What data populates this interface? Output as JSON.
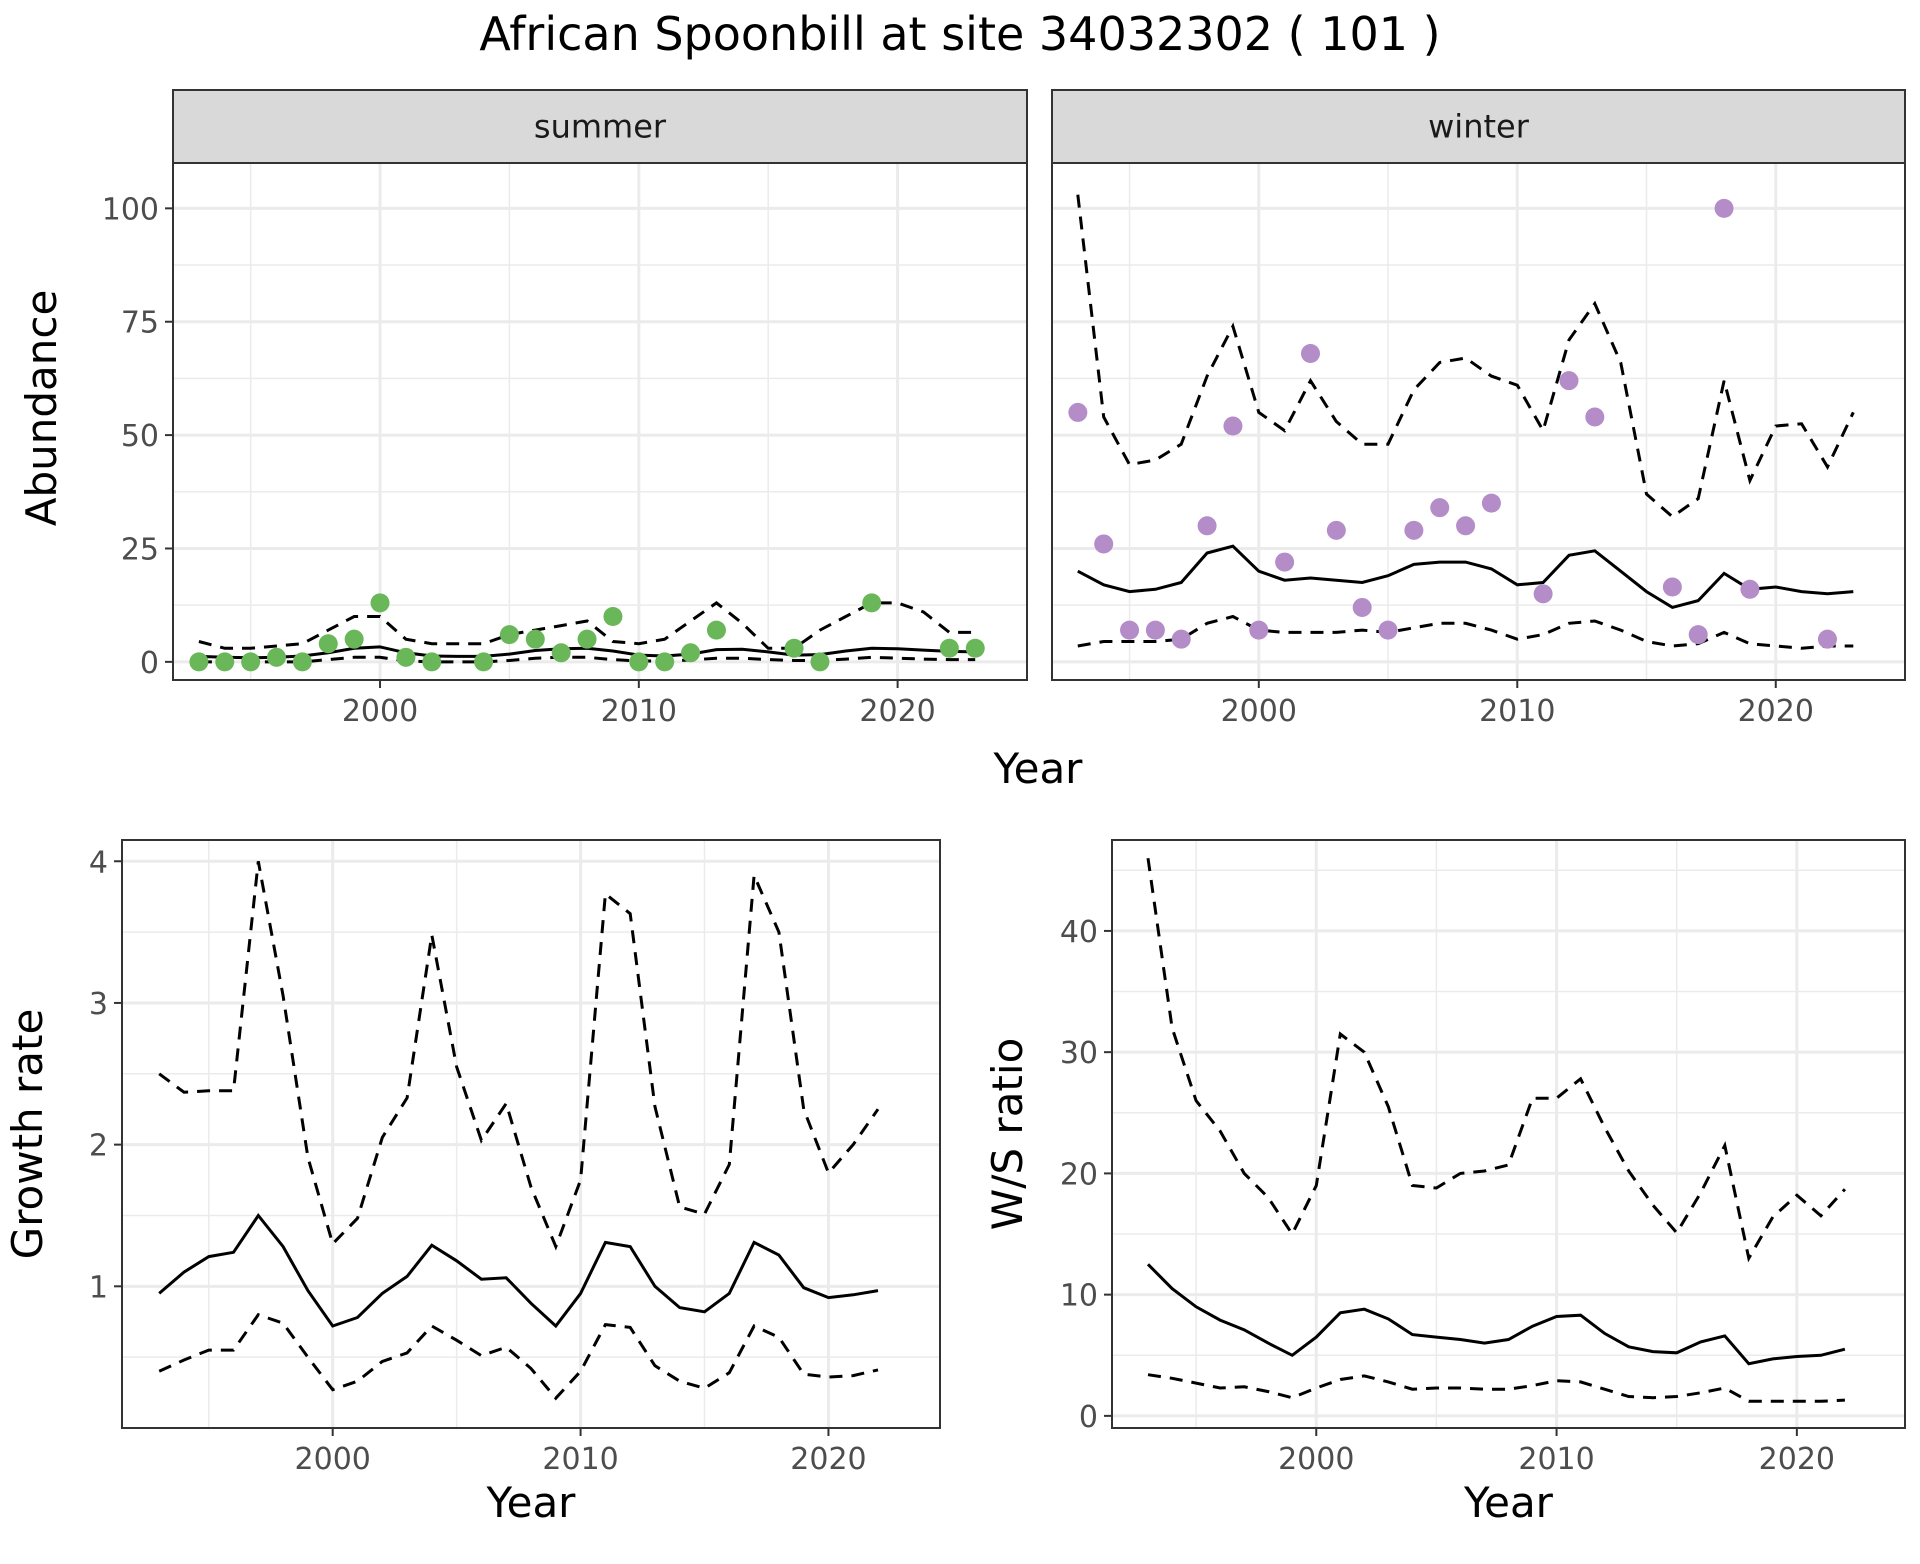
{
  "title": "African Spoonbill at site 34032302 ( 101 )",
  "colors": {
    "summer": "#6ab759",
    "winter": "#b38cc8",
    "line": "#000000",
    "grid": "#ebebeb",
    "strip": "#d9d9d9"
  },
  "chart_data": [
    {
      "type": "scatter",
      "panel": "summer",
      "strip_label": "summer",
      "xlabel": "Year",
      "ylabel": "Abundance",
      "xlim": [
        1992,
        2025
      ],
      "ylim": [
        -4,
        110
      ],
      "x_ticks": [
        2000,
        2010,
        2020
      ],
      "y_ticks": [
        0,
        25,
        50,
        75,
        100
      ],
      "grid": true,
      "points": {
        "x": [
          1993,
          1994,
          1995,
          1996,
          1997,
          1998,
          1999,
          2000,
          2001,
          2002,
          2004,
          2005,
          2006,
          2007,
          2008,
          2009,
          2010,
          2011,
          2012,
          2013,
          2016,
          2017,
          2019,
          2022,
          2023
        ],
        "y": [
          0,
          0,
          0,
          1,
          0,
          4,
          5,
          13,
          1,
          0,
          0,
          6,
          5,
          2,
          5,
          10,
          0,
          0,
          2,
          7,
          3,
          0,
          13,
          3,
          3
        ]
      },
      "lines": {
        "x": [
          1993,
          1994,
          1995,
          1996,
          1997,
          1998,
          1999,
          2000,
          2001,
          2002,
          2003,
          2004,
          2005,
          2006,
          2007,
          2008,
          2009,
          2010,
          2011,
          2012,
          2013,
          2014,
          2015,
          2016,
          2017,
          2018,
          2019,
          2020,
          2021,
          2022,
          2023
        ],
        "mean": [
          1.2,
          1.0,
          0.9,
          1.0,
          1.3,
          2.0,
          3.0,
          3.3,
          2.0,
          1.3,
          1.2,
          1.2,
          1.7,
          2.5,
          2.9,
          3.0,
          2.4,
          1.5,
          1.3,
          1.7,
          2.7,
          2.8,
          2.2,
          1.5,
          1.6,
          2.4,
          3.0,
          2.9,
          2.6,
          2.3,
          2.2
        ],
        "upper": [
          4.5,
          3.0,
          3.0,
          3.5,
          4.0,
          7.0,
          10.0,
          10.0,
          5.0,
          4.0,
          4.0,
          4.0,
          6.0,
          7.0,
          8.0,
          9.0,
          4.5,
          4.0,
          5.0,
          9.0,
          13.0,
          8.5,
          3.0,
          3.0,
          7.0,
          10.0,
          13.0,
          13.0,
          11.0,
          6.5,
          6.5
        ],
        "lower": [
          0.0,
          0.0,
          0.0,
          0.0,
          0.0,
          0.5,
          1.0,
          1.0,
          0.2,
          0.0,
          0.0,
          0.0,
          0.3,
          0.8,
          1.0,
          1.0,
          0.5,
          0.2,
          0.2,
          0.4,
          0.8,
          0.8,
          0.5,
          0.3,
          0.3,
          0.6,
          1.0,
          0.8,
          0.6,
          0.5,
          0.5
        ]
      }
    },
    {
      "type": "scatter",
      "panel": "winter",
      "strip_label": "winter",
      "xlabel": "Year",
      "ylabel": "Abundance",
      "xlim": [
        1992,
        2025
      ],
      "ylim": [
        -4,
        110
      ],
      "x_ticks": [
        2000,
        2010,
        2020
      ],
      "y_ticks": [
        0,
        25,
        50,
        75,
        100
      ],
      "grid": true,
      "points": {
        "x": [
          1993,
          1994,
          1995,
          1996,
          1997,
          1998,
          1999,
          2000,
          2001,
          2002,
          2003,
          2004,
          2005,
          2006,
          2007,
          2008,
          2009,
          2011,
          2012,
          2013,
          2016,
          2017,
          2018,
          2019,
          2022
        ],
        "y": [
          55,
          26,
          7,
          7,
          5,
          30,
          52,
          7,
          22,
          68,
          29,
          12,
          7,
          29,
          34,
          30,
          35,
          15,
          62,
          54,
          16.5,
          6,
          100,
          16,
          5
        ]
      },
      "lines": {
        "x": [
          1993,
          1994,
          1995,
          1996,
          1997,
          1998,
          1999,
          2000,
          2001,
          2002,
          2003,
          2004,
          2005,
          2006,
          2007,
          2008,
          2009,
          2010,
          2011,
          2012,
          2013,
          2014,
          2015,
          2016,
          2017,
          2018,
          2019,
          2020,
          2021,
          2022,
          2023
        ],
        "mean": [
          20,
          17,
          15.5,
          16,
          17.5,
          24,
          25.5,
          20,
          18,
          18.5,
          18,
          17.5,
          19,
          21.5,
          22,
          22,
          20.5,
          17,
          17.5,
          23.5,
          24.5,
          20,
          15.5,
          12,
          13.5,
          19.5,
          16,
          16.5,
          15.5,
          15,
          15.5
        ],
        "upper": [
          103,
          54,
          43.5,
          44.5,
          48,
          63,
          74,
          55,
          51,
          62,
          53,
          48,
          48,
          60,
          66,
          67,
          63,
          61,
          51,
          71,
          79,
          66,
          37,
          32,
          36,
          62,
          40,
          52,
          52.5,
          43,
          55
        ],
        "lower": [
          3.5,
          4.5,
          4.5,
          4.5,
          5,
          8.5,
          10,
          7,
          6.5,
          6.5,
          6.5,
          7,
          6.5,
          7.5,
          8.5,
          8.5,
          7,
          5,
          6,
          8.5,
          9,
          7,
          4.5,
          3.5,
          4,
          6.5,
          4,
          3.5,
          3,
          3.5,
          3.5
        ]
      }
    },
    {
      "type": "line",
      "panel": "growth",
      "xlabel": "Year",
      "ylabel": "Growth rate",
      "xlim": [
        1991.5,
        2024.5
      ],
      "ylim": [
        0,
        4.15
      ],
      "x_ticks": [
        2000,
        2010,
        2020
      ],
      "y_ticks": [
        1,
        2,
        3,
        4
      ],
      "grid": true,
      "lines": {
        "x": [
          1993,
          1994,
          1995,
          1996,
          1997,
          1998,
          1999,
          2000,
          2001,
          2002,
          2003,
          2004,
          2005,
          2006,
          2007,
          2008,
          2009,
          2010,
          2011,
          2012,
          2013,
          2014,
          2015,
          2016,
          2017,
          2018,
          2019,
          2020,
          2021,
          2022
        ],
        "mean": [
          0.95,
          1.1,
          1.21,
          1.24,
          1.5,
          1.28,
          0.97,
          0.72,
          0.78,
          0.95,
          1.07,
          1.29,
          1.18,
          1.05,
          1.06,
          0.88,
          0.72,
          0.95,
          1.31,
          1.28,
          1.0,
          0.85,
          0.82,
          0.95,
          1.31,
          1.22,
          0.99,
          0.92,
          0.94,
          0.97
        ],
        "upper": [
          2.5,
          2.37,
          2.38,
          2.38,
          4.0,
          3.05,
          1.91,
          1.3,
          1.48,
          2.05,
          2.33,
          3.48,
          2.55,
          2.03,
          2.29,
          1.7,
          1.28,
          1.75,
          3.77,
          3.63,
          2.27,
          1.56,
          1.51,
          1.86,
          3.9,
          3.5,
          2.25,
          1.8,
          2.0,
          2.25
        ],
        "lower": [
          0.4,
          0.48,
          0.55,
          0.55,
          0.8,
          0.74,
          0.5,
          0.27,
          0.33,
          0.47,
          0.53,
          0.72,
          0.62,
          0.51,
          0.57,
          0.42,
          0.21,
          0.4,
          0.73,
          0.71,
          0.44,
          0.33,
          0.28,
          0.39,
          0.72,
          0.64,
          0.38,
          0.36,
          0.37,
          0.41
        ]
      }
    },
    {
      "type": "line",
      "panel": "ratio",
      "xlabel": "Year",
      "ylabel": "W/S ratio",
      "xlim": [
        1991.5,
        2024.5
      ],
      "ylim": [
        -1,
        47.5
      ],
      "x_ticks": [
        2000,
        2010,
        2020
      ],
      "y_ticks": [
        0,
        10,
        20,
        30,
        40
      ],
      "grid": true,
      "lines": {
        "x": [
          1993,
          1994,
          1995,
          1996,
          1997,
          1998,
          1999,
          2000,
          2001,
          2002,
          2003,
          2004,
          2005,
          2006,
          2007,
          2008,
          2009,
          2010,
          2011,
          2012,
          2013,
          2014,
          2015,
          2016,
          2017,
          2018,
          2019,
          2020,
          2021,
          2022
        ],
        "mean": [
          12.5,
          10.5,
          9.0,
          7.9,
          7.1,
          6.0,
          5.0,
          6.5,
          8.5,
          8.8,
          8.0,
          6.7,
          6.5,
          6.3,
          6.0,
          6.3,
          7.4,
          8.2,
          8.3,
          6.8,
          5.7,
          5.3,
          5.2,
          6.1,
          6.6,
          4.3,
          4.7,
          4.9,
          5.0,
          5.5
        ],
        "upper": [
          46,
          32,
          26,
          23.5,
          20,
          18,
          15,
          19,
          31.5,
          30,
          25.5,
          19,
          18.8,
          20,
          20.2,
          20.7,
          26.2,
          26.2,
          27.8,
          23.8,
          20.2,
          17.4,
          15.1,
          18.4,
          22.3,
          13.0,
          16.4,
          18.2,
          16.5,
          18.7
        ],
        "lower": [
          3.4,
          3.1,
          2.7,
          2.3,
          2.4,
          2.0,
          1.5,
          2.3,
          3.0,
          3.3,
          2.8,
          2.2,
          2.3,
          2.3,
          2.2,
          2.2,
          2.5,
          2.9,
          2.8,
          2.2,
          1.6,
          1.5,
          1.6,
          1.9,
          2.3,
          1.2,
          1.2,
          1.2,
          1.2,
          1.3
        ]
      }
    }
  ]
}
